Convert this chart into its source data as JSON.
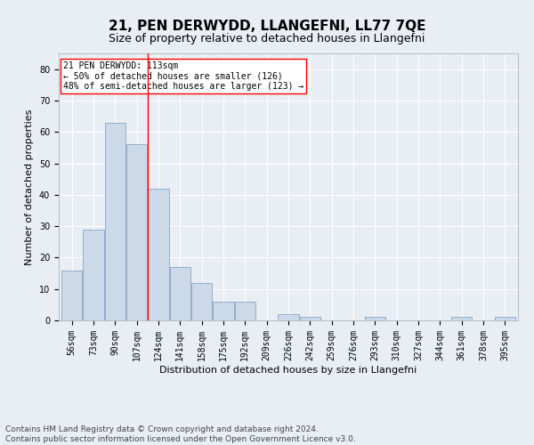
{
  "title": "21, PEN DERWYDD, LLANGEFNI, LL77 7QE",
  "subtitle": "Size of property relative to detached houses in Llangefni",
  "xlabel": "Distribution of detached houses by size in Llangefni",
  "ylabel": "Number of detached properties",
  "bar_color": "#ccd9e8",
  "bar_edge_color": "#7799bb",
  "categories": [
    "56sqm",
    "73sqm",
    "90sqm",
    "107sqm",
    "124sqm",
    "141sqm",
    "158sqm",
    "175sqm",
    "192sqm",
    "209sqm",
    "226sqm",
    "242sqm",
    "259sqm",
    "276sqm",
    "293sqm",
    "310sqm",
    "327sqm",
    "344sqm",
    "361sqm",
    "378sqm",
    "395sqm"
  ],
  "values": [
    16,
    29,
    63,
    56,
    42,
    17,
    12,
    6,
    6,
    0,
    2,
    1,
    0,
    0,
    1,
    0,
    0,
    0,
    1,
    0,
    1
  ],
  "ylim": [
    0,
    85
  ],
  "yticks": [
    0,
    10,
    20,
    30,
    40,
    50,
    60,
    70,
    80
  ],
  "vline_x": 3.5,
  "annotation_title": "21 PEN DERWYDD: 113sqm",
  "annotation_line1": "← 50% of detached houses are smaller (126)",
  "annotation_line2": "48% of semi-detached houses are larger (123) →",
  "footer1": "Contains HM Land Registry data © Crown copyright and database right 2024.",
  "footer2": "Contains public sector information licensed under the Open Government Licence v3.0.",
  "bg_color": "#e8eef4",
  "plot_bg_color": "#e8eef4",
  "grid_color": "#ffffff",
  "vline_color": "red",
  "title_fontsize": 11,
  "subtitle_fontsize": 9,
  "label_fontsize": 8,
  "tick_fontsize": 7,
  "footer_fontsize": 6.5
}
